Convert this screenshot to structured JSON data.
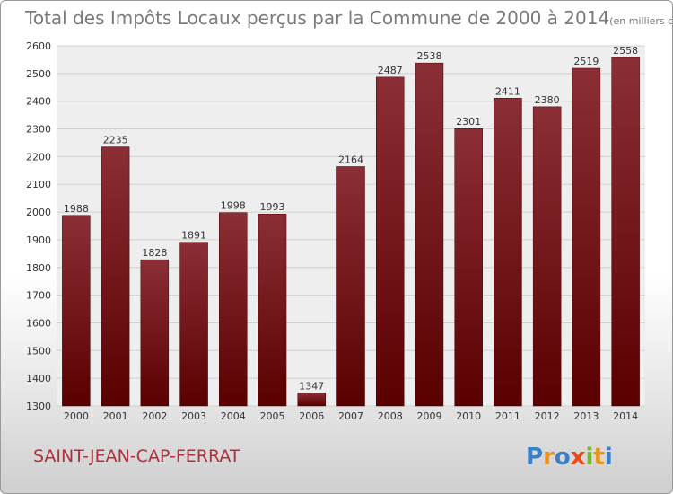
{
  "chart_data": {
    "type": "bar",
    "title": "Total des Impôts Locaux perçus par la Commune de 2000 à 2014",
    "unit_note": "(en milliers d'€)",
    "categories": [
      "2000",
      "2001",
      "2002",
      "2003",
      "2004",
      "2005",
      "2006",
      "2007",
      "2008",
      "2009",
      "2010",
      "2011",
      "2012",
      "2013",
      "2014"
    ],
    "values": [
      1988,
      2235,
      1828,
      1891,
      1998,
      1993,
      1347,
      2164,
      2487,
      2538,
      2301,
      2411,
      2380,
      2519,
      2558
    ],
    "ylim": [
      1300,
      2600
    ],
    "yticks": [
      1300,
      1400,
      1500,
      1600,
      1700,
      1800,
      1900,
      2000,
      2100,
      2200,
      2300,
      2400,
      2500,
      2600
    ],
    "grid": true,
    "xlabel": "",
    "ylabel": ""
  },
  "footer": {
    "commune": "SAINT-JEAN-CAP-FERRAT",
    "logo_letters": [
      "P",
      "r",
      "o",
      "x",
      "i",
      "t",
      "i"
    ],
    "logo_colors": [
      "#3b7fc4",
      "#e8941a",
      "#3b7fc4",
      "#e84a1a",
      "#77b82a",
      "#e8941a",
      "#3b7fc4"
    ]
  },
  "colors": {
    "bar_top": "#8b2e36",
    "bar_bottom": "#5a0000",
    "grid": "#d0d0d0",
    "plot_bg": "#eeeeee"
  }
}
